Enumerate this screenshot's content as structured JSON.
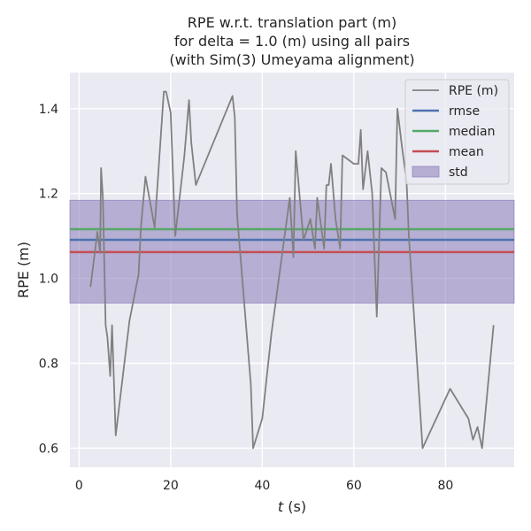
{
  "chart_data": {
    "type": "line",
    "title_lines": [
      "RPE w.r.t. translation part (m)",
      "for delta = 1.0 (m) using all pairs",
      "(with Sim(3) Umeyama alignment)"
    ],
    "xlabel_italic": "t",
    "xlabel_rest": " (s)",
    "ylabel": "RPE (m)",
    "xlim": [
      -2,
      95
    ],
    "ylim": [
      0.555,
      1.485
    ],
    "x_ticks": [
      0,
      20,
      40,
      60,
      80
    ],
    "x_tick_labels": [
      "0",
      "20",
      "40",
      "60",
      "80"
    ],
    "y_ticks": [
      0.6,
      0.8,
      1.0,
      1.2,
      1.4
    ],
    "y_tick_labels": [
      "0.6",
      "0.8",
      "1.0",
      "1.2",
      "1.4"
    ],
    "grid": true,
    "legend_position": "upper right",
    "series": [
      {
        "name": "RPE (m)",
        "color": "#808080",
        "x": [
          2.5,
          4,
          4.6,
          4.8,
          5.2,
          5.8,
          6.2,
          6.8,
          7.2,
          8,
          11,
          13,
          13.5,
          14.5,
          16.5,
          18.5,
          19,
          20,
          21,
          23,
          24,
          24.5,
          25.5,
          33.5,
          34,
          34.5,
          37.5,
          38,
          40,
          42,
          46,
          46.8,
          47.3,
          49,
          50.5,
          51.5,
          52,
          53.5,
          54,
          54.5,
          55,
          56,
          57,
          57.5,
          60,
          61,
          61.5,
          62,
          63,
          64,
          65,
          66,
          67,
          69,
          69.5,
          70.5,
          71.5,
          72,
          75,
          81,
          85,
          86,
          87,
          88,
          90.5
        ],
        "y": [
          0.98,
          1.11,
          1.06,
          1.26,
          1.19,
          0.89,
          0.86,
          0.77,
          0.89,
          0.63,
          0.9,
          1.01,
          1.12,
          1.24,
          1.12,
          1.44,
          1.44,
          1.39,
          1.1,
          1.29,
          1.42,
          1.32,
          1.22,
          1.43,
          1.38,
          1.15,
          0.75,
          0.6,
          0.67,
          0.87,
          1.19,
          1.05,
          1.3,
          1.09,
          1.14,
          1.07,
          1.19,
          1.07,
          1.22,
          1.22,
          1.27,
          1.14,
          1.07,
          1.29,
          1.27,
          1.27,
          1.35,
          1.21,
          1.3,
          1.2,
          0.91,
          1.26,
          1.25,
          1.14,
          1.4,
          1.31,
          1.23,
          1.1,
          0.6,
          0.74,
          0.67,
          0.62,
          0.65,
          0.6,
          0.89
        ]
      }
    ],
    "stats": {
      "rmse": {
        "name": "rmse",
        "value": 1.091,
        "color": "#4c72b0"
      },
      "median": {
        "name": "median",
        "value": 1.116,
        "color": "#55a868"
      },
      "mean": {
        "name": "mean",
        "value": 1.062,
        "color": "#c44e52"
      },
      "std": {
        "name": "std",
        "lower": 0.942,
        "upper": 1.184,
        "color": "#8172b3"
      }
    },
    "legend_order": [
      "RPE (m)",
      "rmse",
      "median",
      "mean",
      "std"
    ]
  }
}
